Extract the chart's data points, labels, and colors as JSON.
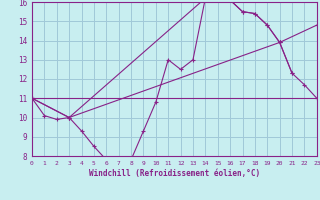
{
  "xlabel": "Windchill (Refroidissement éolien,°C)",
  "bg_color": "#c8eef0",
  "grid_color": "#a0c8d8",
  "line_color": "#882288",
  "xmin": 0,
  "xmax": 23,
  "ymin": 8,
  "ymax": 16,
  "series": [
    {
      "x": [
        0,
        1,
        2,
        3,
        4,
        5,
        6,
        7,
        8,
        9,
        10,
        11,
        12,
        13,
        14,
        15,
        16,
        17,
        18,
        19,
        20,
        21
      ],
      "y": [
        11.0,
        10.1,
        9.9,
        10.0,
        9.3,
        8.5,
        7.8,
        7.7,
        7.8,
        9.3,
        10.8,
        13.0,
        12.5,
        13.0,
        16.2,
        16.2,
        16.1,
        15.5,
        15.4,
        14.8,
        13.9,
        12.3
      ]
    },
    {
      "x": [
        0,
        3,
        14,
        15,
        16,
        17,
        18,
        19,
        20,
        21,
        22,
        23
      ],
      "y": [
        11.0,
        10.0,
        16.2,
        16.2,
        16.1,
        15.5,
        15.4,
        14.8,
        13.9,
        12.3,
        11.7,
        11.0
      ]
    },
    {
      "x": [
        0,
        3,
        20,
        23
      ],
      "y": [
        11.0,
        10.0,
        13.9,
        14.8
      ]
    },
    {
      "x": [
        0,
        23
      ],
      "y": [
        11.0,
        11.0
      ]
    }
  ]
}
